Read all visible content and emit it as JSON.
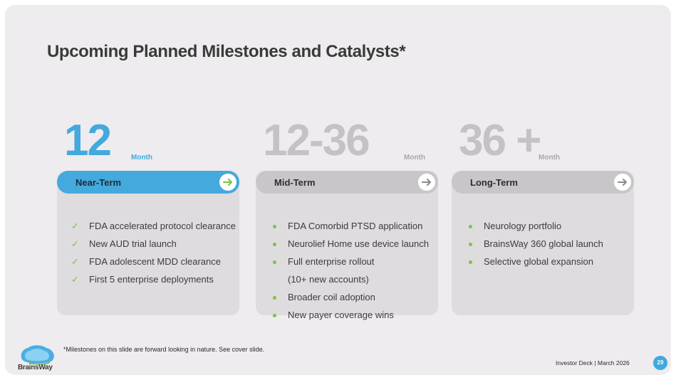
{
  "title": "Upcoming Planned Milestones and Catalysts*",
  "colors": {
    "near_term": "#44a9dd",
    "mid_term": "#c8c6c8",
    "long_term": "#c8c6c8",
    "bullet": "#7dc242",
    "near_arrow": "#7dc242",
    "grey_arrow": "#8a8a8a"
  },
  "columns": [
    {
      "number": "12",
      "unit": "Month",
      "label": "Near-Term",
      "marker": "check",
      "items": [
        "FDA accelerated protocol clearance",
        "New AUD trial launch",
        "FDA adolescent MDD clearance",
        "First 5 enterprise deployments"
      ]
    },
    {
      "number": "12-36",
      "unit": "Month",
      "label": "Mid-Term",
      "marker": "dot",
      "items": [
        "FDA Comorbid PTSD application",
        "Neurolief Home use device launch",
        "Full enterprise rollout",
        "(10+ new accounts)",
        "Broader coil adoption",
        "New payer coverage wins"
      ]
    },
    {
      "number": "36 +",
      "unit": "Month",
      "label": "Long-Term",
      "marker": "dot",
      "items": [
        "Neurology portfolio",
        "BrainsWay 360 global launch",
        "Selective global expansion"
      ]
    }
  ],
  "footnote": "*Milestones on this slide are forward looking in nature. See cover slide.",
  "footer": "Investor Deck | March 2026",
  "page_number": "29",
  "logo_text": "BrainsWay"
}
